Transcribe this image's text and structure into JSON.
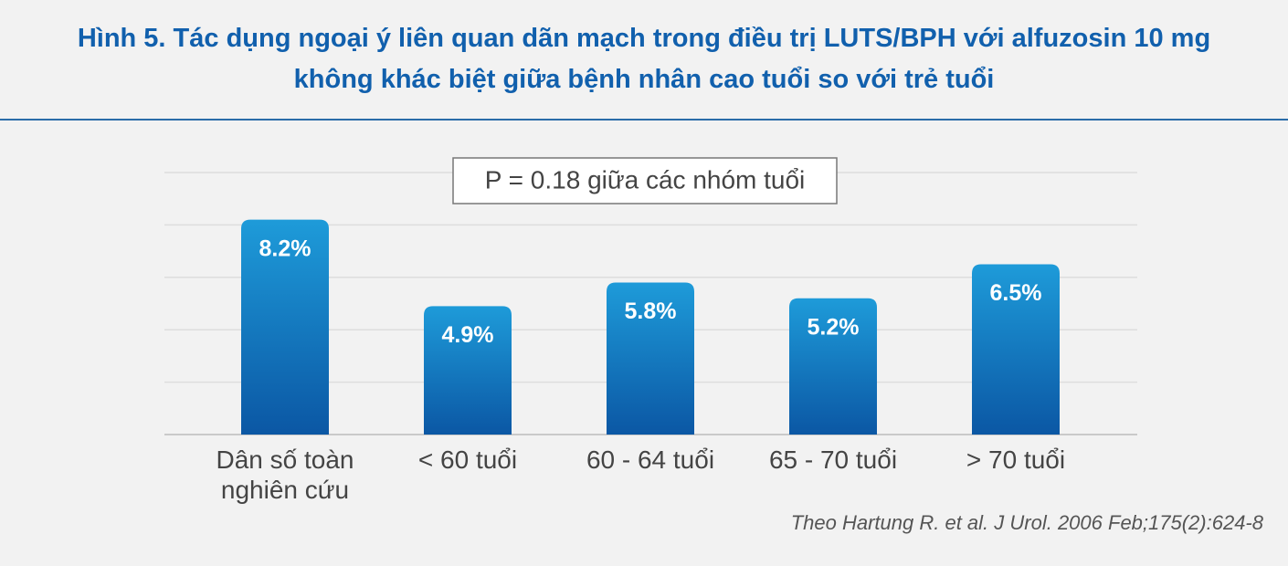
{
  "chart_data": {
    "type": "bar",
    "title": [
      "Hình 5. Tác dụng ngoại ý liên quan dãn mạch trong điều trị LUTS/BPH với alfuzosin 10 mg",
      "không khác biệt giữa bệnh nhân cao tuổi so với trẻ tuổi"
    ],
    "annotation": "P = 0.18 giữa các nhóm tuổi",
    "categories": [
      "Dân số toàn nghiên cứu",
      "< 60 tuổi",
      "60 - 64 tuổi",
      "65 - 70 tuổi",
      "> 70 tuổi"
    ],
    "values": [
      8.2,
      4.9,
      5.8,
      5.2,
      6.5
    ],
    "value_labels": [
      "8.2%",
      "4.9%",
      "5.8%",
      "5.2%",
      "6.5%"
    ],
    "color": "#1e9bd9",
    "ylim": [
      0,
      10
    ],
    "yticks": [
      0,
      2,
      4,
      6,
      8,
      10
    ],
    "grid": true,
    "source": "Theo Hartung R. et al. J Urol. 2006 Feb;175(2):624-8"
  }
}
